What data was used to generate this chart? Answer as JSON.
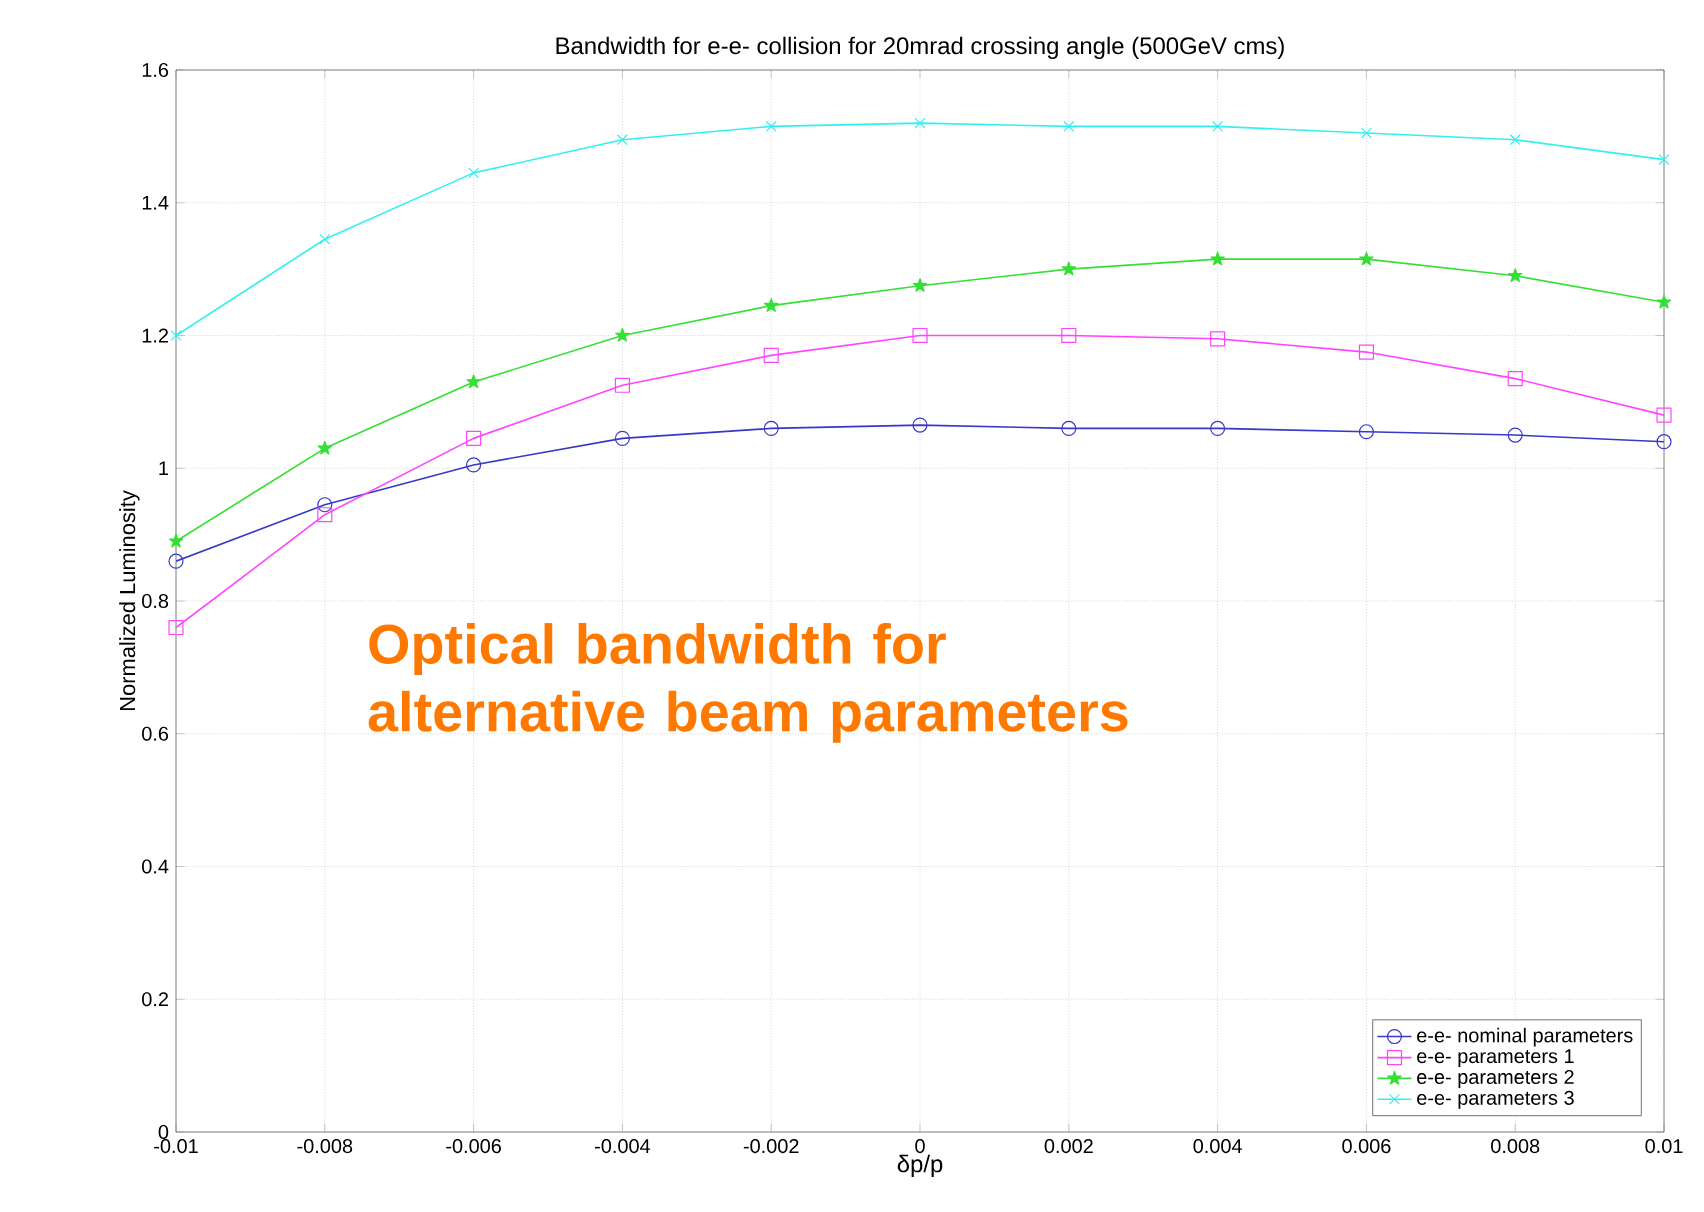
{
  "chart_data": {
    "type": "line",
    "title": "Bandwidth for e-e- collision for 20mrad crossing angle (500GeV cms)",
    "xlabel": "δp/p",
    "ylabel": "Normalized Luminosity",
    "x": [
      -0.01,
      -0.008,
      -0.006,
      -0.004,
      -0.002,
      0,
      0.002,
      0.004,
      0.006,
      0.008,
      0.01
    ],
    "series": [
      {
        "name": "e-e- nominal parameters",
        "color": "#3838c8",
        "marker": "circle",
        "values": [
          0.86,
          0.945,
          1.005,
          1.045,
          1.06,
          1.065,
          1.06,
          1.06,
          1.055,
          1.05,
          1.04
        ]
      },
      {
        "name": "e-e- parameters 1",
        "color": "#ff44ff",
        "marker": "square",
        "values": [
          0.76,
          0.93,
          1.045,
          1.125,
          1.17,
          1.2,
          1.2,
          1.195,
          1.175,
          1.135,
          1.08
        ]
      },
      {
        "name": "e-e- parameters 2",
        "color": "#33e033",
        "marker": "star",
        "values": [
          0.89,
          1.03,
          1.13,
          1.2,
          1.245,
          1.275,
          1.3,
          1.315,
          1.315,
          1.29,
          1.25
        ]
      },
      {
        "name": "e-e- parameters 3",
        "color": "#33f0f0",
        "marker": "cross",
        "values": [
          1.2,
          1.345,
          1.445,
          1.495,
          1.515,
          1.52,
          1.515,
          1.515,
          1.505,
          1.495,
          1.465
        ]
      }
    ],
    "xlim": [
      -0.01,
      0.01
    ],
    "xticks": [
      -0.01,
      -0.008,
      -0.006,
      -0.004,
      -0.002,
      0,
      0.002,
      0.004,
      0.006,
      0.008,
      0.01
    ],
    "ylim": [
      0,
      1.6
    ],
    "yticks": [
      0,
      0.2,
      0.4,
      0.6,
      0.8,
      1,
      1.2,
      1.4,
      1.6
    ],
    "grid": true,
    "legend": "bottom right",
    "annotations": [
      "Optical bandwidth for alternative beam parameters"
    ]
  }
}
